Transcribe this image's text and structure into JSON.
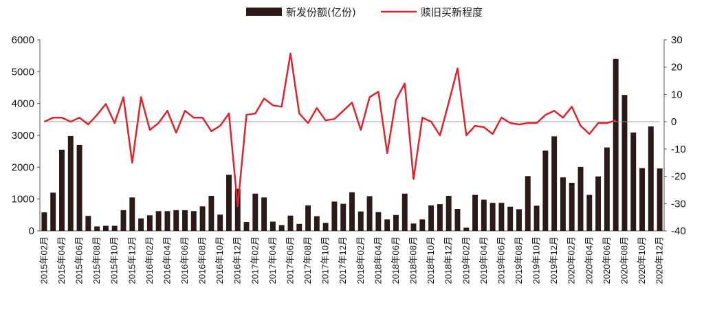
{
  "chart_data": {
    "type": "bar",
    "title": "",
    "legend_position": "top-center",
    "grid": false,
    "colors": {
      "bar": "#2b1a17",
      "line": "#e0222c",
      "baseline": "#999999",
      "axis": "#555555"
    },
    "x_tick_labels": [
      "2015年02月",
      "2015年04月",
      "2015年06月",
      "2015年08月",
      "2015年10月",
      "2015年12月",
      "2016年02月",
      "2016年04月",
      "2016年06月",
      "2016年08月",
      "2016年10月",
      "2016年12月",
      "2017年02月",
      "2017年04月",
      "2017年06月",
      "2017年08月",
      "2017年10月",
      "2017年12月",
      "2018年02月",
      "2018年04月",
      "2018年06月",
      "2018年08月",
      "2018年10月",
      "2018年12月",
      "2019年02月",
      "2019年04月",
      "2019年06月",
      "2019年08月",
      "2019年10月",
      "2019年12月",
      "2020年02月",
      "2020年04月",
      "2020年06月",
      "2020年08月",
      "2020年10月",
      "2020年12月"
    ],
    "left_axis": {
      "min": 0,
      "max": 6000,
      "ticks": [
        "0",
        "1000",
        "2000",
        "3000",
        "4000",
        "5000",
        "6000"
      ]
    },
    "right_axis": {
      "min": -40,
      "max": 30,
      "ticks": [
        "-40",
        "-30",
        "-20",
        "-10",
        "0",
        "10",
        "20",
        "30"
      ]
    },
    "series": [
      {
        "name": "新发份额(亿份)",
        "type": "bar",
        "axis": "left",
        "values": [
          580,
          1200,
          2550,
          2980,
          2700,
          470,
          140,
          160,
          160,
          650,
          1050,
          390,
          490,
          620,
          620,
          650,
          650,
          620,
          770,
          1100,
          510,
          1760,
          1320,
          280,
          1170,
          1050,
          290,
          180,
          480,
          220,
          800,
          460,
          250,
          920,
          850,
          1210,
          610,
          1090,
          590,
          360,
          500,
          1170,
          230,
          360,
          800,
          840,
          1100,
          690,
          100,
          1130,
          980,
          880,
          880,
          760,
          680,
          1720,
          790,
          2520,
          2970,
          1680,
          1510,
          2010,
          1130,
          1710,
          2620,
          5400,
          4270,
          3090,
          1970,
          3280,
          1960
        ]
      },
      {
        "name": "赎旧买新程度",
        "type": "line",
        "axis": "right",
        "values": [
          0,
          1.5,
          1.5,
          0,
          1.5,
          -1,
          2.5,
          6.5,
          -0.5,
          9,
          -15,
          9,
          -3,
          -0.5,
          4,
          -4,
          4,
          1.5,
          1.5,
          -3.5,
          -1.5,
          3,
          -31,
          2.5,
          3,
          8.5,
          6,
          5.5,
          25,
          3,
          -0.5,
          5,
          0.5,
          1,
          4,
          7,
          -3,
          9,
          11,
          -11.5,
          8,
          14,
          -21,
          1.5,
          0,
          -5,
          7,
          19.5,
          -5,
          -1.5,
          -2,
          -4.5,
          1.5,
          -0.5,
          -1,
          -0.5,
          -0.5,
          2.5,
          4,
          1.5,
          5.5,
          -1.5,
          -4.5,
          -0.5,
          -0.5,
          0.5
        ]
      }
    ]
  }
}
